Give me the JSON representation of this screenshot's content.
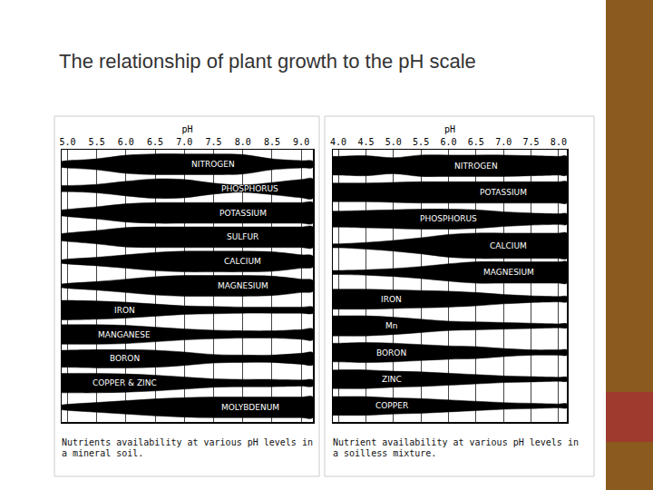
{
  "title": "The relationship of plant growth to the pH scale",
  "chart_data": [
    {
      "type": "band",
      "x_label": "pH",
      "caption": "Nutrients availability at various pH levels in a mineral soil.",
      "color": "#000000",
      "grid": true,
      "tick_labels": "x",
      "xlim": [
        4.9,
        9.2
      ],
      "xticks": [
        {
          "value": 5,
          "label": "5.0"
        },
        5.5,
        {
          "value": 6,
          "label": "6.0"
        },
        6.5,
        {
          "value": 7,
          "label": "7.0"
        },
        7.5,
        {
          "value": 8,
          "label": "8.0"
        },
        8.5,
        {
          "value": 9,
          "label": "9.0"
        }
      ],
      "x": [
        4.9,
        5.0,
        5.5,
        6.0,
        6.5,
        7.0,
        7.5,
        8.0,
        8.5,
        9.0,
        9.2
      ],
      "series": [
        {
          "name": "NITROGEN",
          "values": [
            0.25,
            0.3,
            0.45,
            0.75,
            0.85,
            0.85,
            0.85,
            0.8,
            0.45,
            0.3,
            0.25
          ]
        },
        {
          "name": "PHOSPHORUS",
          "values": [
            0.25,
            0.25,
            0.35,
            0.6,
            0.8,
            0.75,
            0.45,
            0.3,
            0.5,
            0.75,
            0.8
          ]
        },
        {
          "name": "POTASSIUM",
          "values": [
            0.25,
            0.3,
            0.5,
            0.75,
            0.85,
            0.85,
            0.85,
            0.85,
            0.85,
            0.85,
            0.85
          ]
        },
        {
          "name": "SULFUR",
          "values": [
            0.3,
            0.35,
            0.55,
            0.8,
            0.85,
            0.85,
            0.85,
            0.85,
            0.85,
            0.85,
            0.85
          ]
        },
        {
          "name": "CALCIUM",
          "values": [
            0.15,
            0.2,
            0.35,
            0.55,
            0.75,
            0.85,
            0.85,
            0.85,
            0.8,
            0.55,
            0.45
          ]
        },
        {
          "name": "MAGNESIUM",
          "values": [
            0.15,
            0.2,
            0.35,
            0.55,
            0.75,
            0.85,
            0.85,
            0.85,
            0.8,
            0.55,
            0.45
          ]
        },
        {
          "name": "IRON",
          "values": [
            0.8,
            0.8,
            0.75,
            0.65,
            0.5,
            0.35,
            0.3,
            0.25,
            0.25,
            0.25,
            0.25
          ]
        },
        {
          "name": "MANGANESE",
          "values": [
            0.8,
            0.8,
            0.8,
            0.75,
            0.6,
            0.45,
            0.35,
            0.3,
            0.3,
            0.4,
            0.45
          ]
        },
        {
          "name": "BORON",
          "values": [
            0.7,
            0.7,
            0.75,
            0.75,
            0.7,
            0.55,
            0.35,
            0.3,
            0.3,
            0.45,
            0.5
          ]
        },
        {
          "name": "COPPER & ZINC",
          "values": [
            0.8,
            0.8,
            0.8,
            0.75,
            0.65,
            0.5,
            0.35,
            0.3,
            0.3,
            0.25,
            0.25
          ]
        },
        {
          "name": "MOLYBDENUM",
          "values": [
            0.2,
            0.25,
            0.4,
            0.55,
            0.7,
            0.8,
            0.85,
            0.85,
            0.85,
            0.85,
            0.85
          ]
        }
      ]
    },
    {
      "type": "band",
      "x_label": "pH",
      "caption": "Nutrient availability at various pH levels in a soilless mixture.",
      "color": "#000000",
      "grid": true,
      "tick_labels": "x",
      "xlim": [
        3.9,
        8.15
      ],
      "xticks": [
        {
          "value": 4,
          "label": "4.0"
        },
        4.5,
        {
          "value": 5,
          "label": "5.0"
        },
        5.5,
        {
          "value": 6,
          "label": "6.0"
        },
        6.5,
        {
          "value": 7,
          "label": "7.0"
        },
        7.5,
        {
          "value": 8,
          "label": "8.0"
        }
      ],
      "x": [
        3.9,
        4.0,
        4.5,
        5.0,
        5.5,
        6.0,
        6.5,
        7.0,
        7.5,
        8.0,
        8.15
      ],
      "series": [
        {
          "name": "NITROGEN",
          "values": [
            0.7,
            0.7,
            0.75,
            0.6,
            0.8,
            0.8,
            0.8,
            0.8,
            0.75,
            0.7,
            0.7
          ]
        },
        {
          "name": "POTASSIUM",
          "values": [
            0.7,
            0.7,
            0.7,
            0.75,
            0.8,
            0.8,
            0.8,
            0.8,
            0.8,
            0.8,
            0.8
          ]
        },
        {
          "name": "PHOSPHORUS",
          "values": [
            0.6,
            0.6,
            0.65,
            0.7,
            0.75,
            0.75,
            0.7,
            0.55,
            0.45,
            0.4,
            0.4
          ]
        },
        {
          "name": "CALCIUM",
          "values": [
            0.15,
            0.15,
            0.25,
            0.4,
            0.6,
            0.85,
            0.95,
            0.95,
            0.95,
            0.95,
            0.95
          ]
        },
        {
          "name": "MAGNESIUM",
          "values": [
            0.15,
            0.15,
            0.2,
            0.3,
            0.45,
            0.65,
            0.8,
            0.8,
            0.8,
            0.8,
            0.8
          ]
        },
        {
          "name": "IRON",
          "values": [
            0.75,
            0.75,
            0.75,
            0.7,
            0.65,
            0.6,
            0.5,
            0.35,
            0.25,
            0.2,
            0.2
          ]
        },
        {
          "name": "Mn",
          "values": [
            0.75,
            0.75,
            0.75,
            0.65,
            0.5,
            0.35,
            0.3,
            0.25,
            0.2,
            0.15,
            0.15
          ]
        },
        {
          "name": "BORON",
          "values": [
            0.7,
            0.7,
            0.75,
            0.7,
            0.6,
            0.5,
            0.45,
            0.3,
            0.2,
            0.2,
            0.2
          ]
        },
        {
          "name": "ZINC",
          "values": [
            0.7,
            0.7,
            0.7,
            0.6,
            0.55,
            0.45,
            0.35,
            0.25,
            0.2,
            0.15,
            0.15
          ]
        },
        {
          "name": "COPPER",
          "values": [
            0.7,
            0.7,
            0.7,
            0.6,
            0.55,
            0.45,
            0.35,
            0.25,
            0.2,
            0.15,
            0.15
          ]
        }
      ]
    }
  ]
}
